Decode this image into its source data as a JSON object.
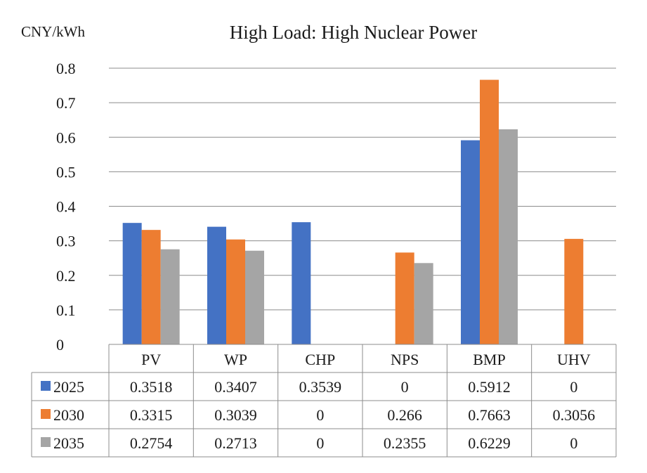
{
  "chart_data": {
    "type": "bar",
    "title": "High Load: High Nuclear Power",
    "unit_label": "CNY/kWh",
    "categories": [
      "PV",
      "WP",
      "CHP",
      "NPS",
      "BMP",
      "UHV"
    ],
    "series": [
      {
        "name": "2025",
        "color": "#4472c4",
        "values": [
          0.3518,
          0.3407,
          0.3539,
          0,
          0.5912,
          0
        ],
        "labels": [
          "0.3518",
          "0.3407",
          "0.3539",
          "0",
          "0.5912",
          "0"
        ]
      },
      {
        "name": "2030",
        "color": "#ed7d31",
        "values": [
          0.3315,
          0.3039,
          0,
          0.266,
          0.7663,
          0.3056
        ],
        "labels": [
          "0.3315",
          "0.3039",
          "0",
          "0.266",
          "0.7663",
          "0.3056"
        ]
      },
      {
        "name": "2035",
        "color": "#a5a5a5",
        "values": [
          0.2754,
          0.2713,
          0,
          0.2355,
          0.6229,
          0
        ],
        "labels": [
          "0.2754",
          "0.2713",
          "0",
          "0.2355",
          "0.6229",
          "0"
        ]
      }
    ],
    "yticks": [
      "0",
      "0.1",
      "0.2",
      "0.3",
      "0.4",
      "0.5",
      "0.6",
      "0.7",
      "0.8"
    ],
    "ylim": [
      0,
      0.8
    ],
    "grid": true,
    "legend": "data-table-left",
    "data_table": true
  }
}
